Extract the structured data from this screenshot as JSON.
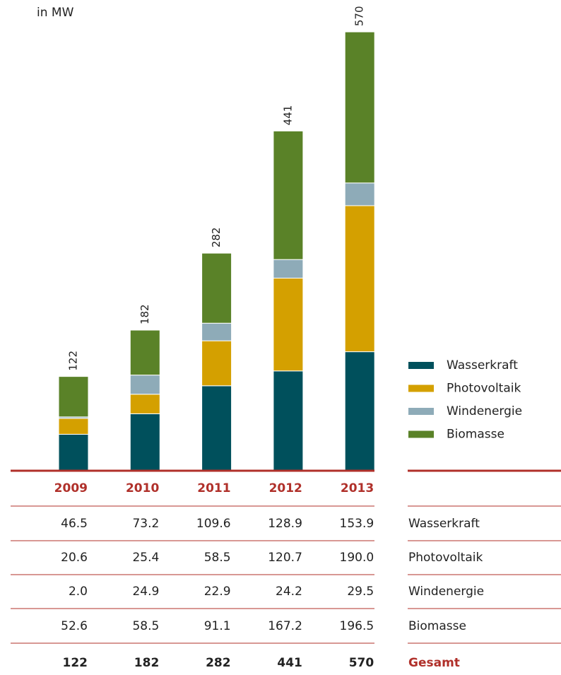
{
  "chart_data": {
    "type": "bar",
    "stacked": true,
    "unit_label": "in MW",
    "categories": [
      "2009",
      "2010",
      "2011",
      "2012",
      "2013"
    ],
    "series": [
      {
        "name": "Wasserkraft",
        "color": "#00505c",
        "values": [
          46.5,
          73.2,
          109.6,
          128.9,
          153.9
        ],
        "value_labels": [
          "46.5",
          "73.2",
          "109.6",
          "128.9",
          "153.9"
        ]
      },
      {
        "name": "Photovoltaik",
        "color": "#d4a000",
        "values": [
          20.6,
          25.4,
          58.5,
          120.7,
          190.0
        ],
        "value_labels": [
          "20.6",
          "25.4",
          "58.5",
          "120.7",
          "190.0"
        ]
      },
      {
        "name": "Windenergie",
        "color": "#8eabb8",
        "values": [
          2.0,
          24.9,
          22.9,
          24.2,
          29.5
        ],
        "value_labels": [
          "2.0",
          "24.9",
          "22.9",
          "24.2",
          "29.5"
        ]
      },
      {
        "name": "Biomasse",
        "color": "#5a8228",
        "values": [
          52.6,
          58.5,
          91.1,
          167.2,
          196.5
        ],
        "value_labels": [
          "52.6",
          "58.5",
          "91.1",
          "167.2",
          "196.5"
        ]
      }
    ],
    "totals_label": "Gesamt",
    "totals": [
      122,
      182,
      282,
      441,
      570
    ]
  }
}
